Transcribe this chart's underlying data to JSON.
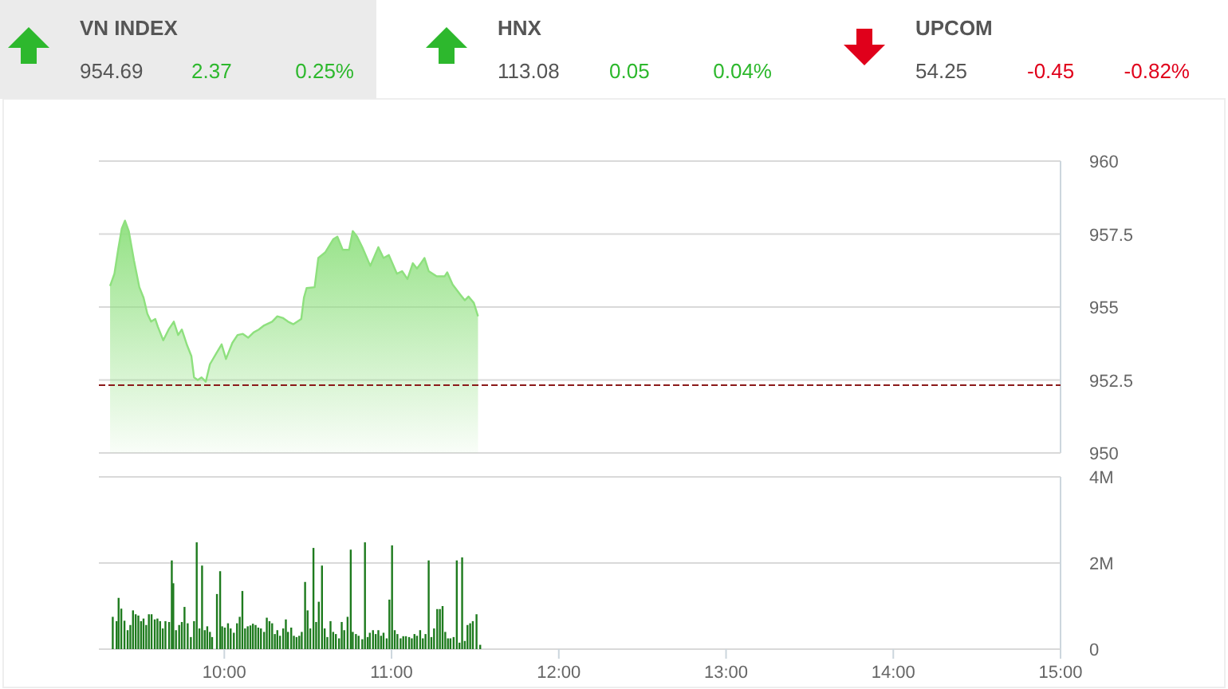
{
  "chart_data": [
    {
      "type": "other",
      "annotations": [
        "VN INDEX",
        "954.69",
        "2.37",
        "0.25%",
        "HNX",
        "113.08",
        "0.05",
        "0.04%",
        "UPCOM",
        "54.25",
        "-0.45",
        "-0.82%"
      ],
      "colors": [
        "#2db82d",
        "#2db82d",
        "#e0001b"
      ]
    },
    {
      "type": "area",
      "xlim": [
        9.25,
        15
      ],
      "ylim": [
        950,
        960
      ],
      "yticks": [
        950,
        952.5,
        955,
        957.5,
        960
      ],
      "grid": "y",
      "tick_labels": "y",
      "ref_lines": [
        {
          "axis": "y",
          "value": 952.32,
          "color": "#8b1a1a",
          "line_style": "dashed"
        }
      ],
      "series": [
        {
          "color": "#8ee07e",
          "x": [
            9.317,
            9.343,
            9.365,
            9.387,
            9.406,
            9.429,
            9.46,
            9.492,
            9.517,
            9.54,
            9.562,
            9.587,
            9.603,
            9.635,
            9.667,
            9.698,
            9.724,
            9.746,
            9.778,
            9.803,
            9.819,
            9.841,
            9.864,
            9.889,
            9.914,
            9.952,
            9.984,
            10.01,
            10.048,
            10.079,
            10.111,
            10.143,
            10.175,
            10.206,
            10.238,
            10.286,
            10.317,
            10.349,
            10.381,
            10.413,
            10.46,
            10.476,
            10.492,
            10.54,
            10.562,
            10.603,
            10.651,
            10.676,
            10.708,
            10.746,
            10.768,
            10.794,
            10.825,
            10.873,
            10.921,
            10.952,
            10.984,
            11.032,
            11.063,
            11.095,
            11.127,
            11.152,
            11.175,
            11.197,
            11.222,
            11.27,
            11.317,
            11.333,
            11.365,
            11.413,
            11.438,
            11.46,
            11.492,
            11.517
          ],
          "values": [
            955.72,
            956.14,
            956.96,
            957.69,
            957.96,
            957.6,
            956.59,
            955.68,
            955.32,
            954.77,
            954.5,
            954.59,
            954.32,
            953.86,
            954.23,
            954.5,
            954.04,
            954.23,
            953.68,
            953.32,
            952.59,
            952.5,
            952.59,
            952.44,
            953.04,
            953.41,
            953.72,
            953.22,
            953.77,
            954.04,
            954.08,
            953.95,
            954.13,
            954.23,
            954.37,
            954.5,
            954.68,
            954.63,
            954.5,
            954.41,
            954.59,
            955.32,
            955.65,
            955.68,
            956.68,
            956.87,
            957.32,
            957.41,
            956.96,
            956.96,
            957.6,
            957.41,
            957.05,
            956.41,
            957.05,
            956.68,
            956.78,
            956.14,
            956.23,
            955.96,
            956.5,
            956.32,
            956.5,
            956.68,
            956.23,
            956.05,
            956.05,
            956.19,
            955.77,
            955.41,
            955.23,
            955.36,
            955.14,
            954.68
          ]
        }
      ]
    },
    {
      "type": "bar",
      "xlim": [
        9.25,
        15
      ],
      "xticks": [
        {
          "value": 10,
          "label": "10:00"
        },
        {
          "value": 11,
          "label": "11:00"
        },
        {
          "value": 12,
          "label": "12:00"
        },
        {
          "value": 13,
          "label": "13:00"
        },
        {
          "value": 14,
          "label": "14:00"
        },
        {
          "value": 15,
          "label": "15:00"
        }
      ],
      "ylim": [
        0,
        4
      ],
      "yticks": [
        {
          "value": 0,
          "label": "0"
        },
        {
          "value": 2,
          "label": "2M"
        },
        {
          "value": 4,
          "label": "4M"
        }
      ],
      "grid": "y",
      "series": [
        {
          "color": "#1e7b1e",
          "x": [
            9.333,
            9.356,
            9.368,
            9.384,
            9.403,
            9.422,
            9.438,
            9.454,
            9.47,
            9.486,
            9.502,
            9.517,
            9.533,
            9.549,
            9.565,
            9.584,
            9.6,
            9.616,
            9.632,
            9.648,
            9.67,
            9.686,
            9.695,
            9.711,
            9.73,
            9.746,
            9.762,
            9.781,
            9.8,
            9.819,
            9.835,
            9.851,
            9.867,
            9.883,
            9.898,
            9.914,
            9.927,
            9.956,
            9.975,
            9.987,
            10.003,
            10.022,
            10.038,
            10.057,
            10.076,
            10.092,
            10.108,
            10.124,
            10.14,
            10.156,
            10.171,
            10.187,
            10.203,
            10.219,
            10.238,
            10.254,
            10.27,
            10.286,
            10.302,
            10.317,
            10.333,
            10.352,
            10.368,
            10.381,
            10.4,
            10.416,
            10.432,
            10.448,
            10.463,
            10.483,
            10.498,
            10.514,
            10.533,
            10.549,
            10.565,
            10.584,
            10.6,
            10.616,
            10.635,
            10.651,
            10.667,
            10.686,
            10.702,
            10.717,
            10.737,
            10.756,
            10.768,
            10.787,
            10.803,
            10.825,
            10.841,
            10.857,
            10.87,
            10.889,
            10.905,
            10.921,
            10.937,
            10.952,
            10.971,
            10.987,
            11.003,
            11.019,
            11.035,
            11.054,
            11.07,
            11.086,
            11.105,
            11.121,
            11.137,
            11.152,
            11.171,
            11.187,
            11.203,
            11.222,
            11.238,
            11.254,
            11.273,
            11.289,
            11.305,
            11.321,
            11.337,
            11.352,
            11.371,
            11.39,
            11.406,
            11.422,
            11.438,
            11.454,
            11.47,
            11.486,
            11.508,
            11.53
          ],
          "values": [
            0.75,
            0.65,
            1.19,
            0.94,
            0.66,
            0.44,
            0.56,
            0.9,
            0.81,
            0.78,
            0.65,
            0.71,
            0.56,
            0.81,
            0.81,
            0.69,
            0.71,
            0.65,
            0.48,
            0.65,
            0.63,
            2.06,
            1.53,
            0.44,
            0.56,
            0.63,
            0.98,
            0.6,
            0.28,
            0.65,
            2.48,
            0.48,
            1.94,
            0.44,
            0.53,
            0.4,
            0.28,
            1.28,
            1.81,
            0.53,
            0.5,
            0.6,
            0.48,
            0.38,
            0.6,
            0.75,
            1.35,
            0.48,
            0.53,
            0.55,
            0.59,
            0.56,
            0.5,
            0.48,
            0.4,
            0.73,
            0.65,
            0.6,
            0.35,
            0.44,
            0.31,
            0.48,
            0.69,
            0.4,
            0.5,
            0.31,
            0.28,
            0.31,
            0.4,
            1.56,
            0.9,
            0.48,
            2.35,
            0.63,
            1.1,
            1.94,
            0.48,
            0.28,
            0.65,
            0.4,
            0.35,
            0.25,
            0.63,
            0.44,
            0.75,
            2.31,
            0.4,
            0.35,
            0.31,
            0.23,
            2.48,
            0.28,
            0.38,
            0.44,
            0.35,
            0.44,
            0.31,
            0.38,
            0.25,
            1.15,
            2.41,
            0.44,
            0.35,
            0.25,
            0.3,
            0.3,
            0.28,
            0.25,
            0.35,
            0.31,
            0.44,
            0.25,
            0.35,
            2.06,
            0.28,
            0.48,
            0.93,
            0.93,
            1,
            0.4,
            0.25,
            0.25,
            0.28,
            2.06,
            0.15,
            2.13,
            0.19,
            0.56,
            0.6,
            0.65,
            0.81,
            0.1
          ]
        }
      ]
    }
  ]
}
